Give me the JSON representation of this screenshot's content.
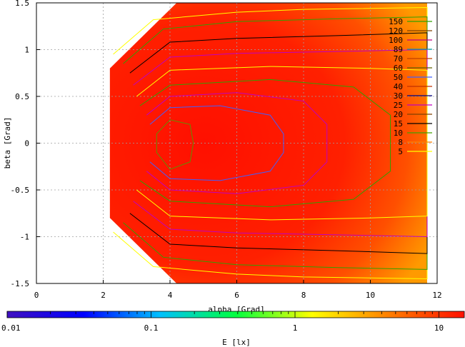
{
  "chart_data": {
    "type": "heatmap",
    "xlabel": "alpha [Grad]",
    "ylabel": "beta [Grad]",
    "xlim": [
      0,
      12
    ],
    "ylim": [
      1.5,
      -1.5
    ],
    "x_ticks": [
      "0",
      "2",
      "4",
      "6",
      "8",
      "10",
      "12"
    ],
    "y_ticks": [
      "-1.5",
      "-1",
      "-0.5",
      "0",
      "0.5",
      "1",
      "1.5"
    ],
    "grid": true,
    "colorbar": {
      "label": "E [lx]",
      "scale": "log",
      "range": [
        0.01,
        15
      ],
      "tick_labels": [
        "0.01",
        "0.1",
        "1",
        "10"
      ],
      "colors": [
        "#4010c0",
        "#0000ff",
        "#00c0ff",
        "#00ff40",
        "#ffff00",
        "#ff8000",
        "#ff1000"
      ]
    },
    "contour_legend": {
      "placement": "top-right",
      "levels": [
        {
          "label": "150",
          "color": "#30a000"
        },
        {
          "label": "120",
          "color": "#804000"
        },
        {
          "label": "100",
          "color": "#c00080"
        },
        {
          "label": "89",
          "color": "#00a0a0"
        },
        {
          "label": "70",
          "color": "#c04000"
        },
        {
          "label": "60",
          "color": "#606000"
        },
        {
          "label": "50",
          "color": "#4060ff"
        },
        {
          "label": "40",
          "color": "#c03000"
        },
        {
          "label": "30",
          "color": "#000080"
        },
        {
          "label": "25",
          "color": "#c000c0"
        },
        {
          "label": "20",
          "color": "#804000"
        },
        {
          "label": "15",
          "color": "#000000"
        },
        {
          "label": "10",
          "color": "#40a000"
        },
        {
          "label": "8",
          "color": "#ff8000"
        },
        {
          "label": "5",
          "color": "#ffff00"
        }
      ]
    },
    "contours": [
      {
        "color": "#ffff00",
        "points": [
          [
            2.3,
            -0.95
          ],
          [
            3.5,
            -1.32
          ],
          [
            6,
            -1.4
          ],
          [
            8,
            -1.43
          ],
          [
            11.7,
            -1.45
          ],
          [
            11.7,
            1.45
          ],
          [
            8,
            1.43
          ],
          [
            6,
            1.4
          ],
          [
            3.5,
            1.32
          ],
          [
            2.3,
            0.95
          ]
        ]
      },
      {
        "color": "#30a000",
        "points": [
          [
            2.6,
            -0.85
          ],
          [
            3.8,
            -1.22
          ],
          [
            6,
            -1.3
          ],
          [
            9,
            -1.33
          ],
          [
            11.7,
            -1.35
          ],
          [
            11.7,
            1.35
          ],
          [
            9,
            1.33
          ],
          [
            6,
            1.3
          ],
          [
            3.8,
            1.22
          ],
          [
            2.6,
            0.85
          ]
        ]
      },
      {
        "color": "#000000",
        "points": [
          [
            2.8,
            -0.75
          ],
          [
            4,
            -1.08
          ],
          [
            6,
            -1.12
          ],
          [
            9,
            -1.15
          ],
          [
            11.7,
            -1.18
          ],
          [
            11.7,
            1.18
          ],
          [
            9,
            1.15
          ],
          [
            6,
            1.12
          ],
          [
            4,
            1.08
          ],
          [
            2.8,
            0.75
          ]
        ]
      },
      {
        "color": "#c000c0",
        "points": [
          [
            2.9,
            -0.62
          ],
          [
            4,
            -0.92
          ],
          [
            6,
            -0.96
          ],
          [
            9,
            -0.98
          ],
          [
            11.7,
            -1.0
          ],
          [
            11.7,
            1.0
          ],
          [
            9,
            0.98
          ],
          [
            6,
            0.96
          ],
          [
            4,
            0.92
          ],
          [
            2.9,
            0.62
          ]
        ]
      },
      {
        "color": "#ffff00",
        "points": [
          [
            3.0,
            -0.5
          ],
          [
            4,
            -0.78
          ],
          [
            7,
            -0.82
          ],
          [
            10,
            -0.8
          ],
          [
            11.7,
            -0.78
          ],
          [
            11.7,
            0.78
          ],
          [
            10,
            0.8
          ],
          [
            7,
            0.82
          ],
          [
            4,
            0.78
          ],
          [
            3.0,
            0.5
          ]
        ]
      },
      {
        "color": "#30a000",
        "points": [
          [
            3.1,
            -0.4
          ],
          [
            4,
            -0.62
          ],
          [
            7,
            -0.68
          ],
          [
            9.5,
            -0.6
          ],
          [
            10.6,
            -0.3
          ],
          [
            10.6,
            0.3
          ],
          [
            9.5,
            0.6
          ],
          [
            7,
            0.68
          ],
          [
            4,
            0.62
          ],
          [
            3.1,
            0.4
          ]
        ]
      },
      {
        "color": "#c000c0",
        "points": [
          [
            3.3,
            -0.3
          ],
          [
            4,
            -0.5
          ],
          [
            6,
            -0.54
          ],
          [
            8,
            -0.45
          ],
          [
            8.7,
            -0.2
          ],
          [
            8.7,
            0.2
          ],
          [
            8,
            0.45
          ],
          [
            6,
            0.54
          ],
          [
            4,
            0.5
          ],
          [
            3.3,
            0.3
          ]
        ]
      },
      {
        "color": "#4060ff",
        "points": [
          [
            3.4,
            -0.2
          ],
          [
            4,
            -0.38
          ],
          [
            5.5,
            -0.4
          ],
          [
            7,
            -0.3
          ],
          [
            7.4,
            -0.1
          ],
          [
            7.4,
            0.1
          ],
          [
            7,
            0.3
          ],
          [
            5.5,
            0.4
          ],
          [
            4,
            0.38
          ],
          [
            3.4,
            0.2
          ]
        ]
      },
      {
        "color": "#609000",
        "points": [
          [
            3.6,
            -0.1
          ],
          [
            4,
            -0.28
          ],
          [
            4.6,
            -0.2
          ],
          [
            4.7,
            0.0
          ],
          [
            4.6,
            0.2
          ],
          [
            4,
            0.25
          ],
          [
            3.6,
            0.1
          ]
        ]
      }
    ]
  }
}
